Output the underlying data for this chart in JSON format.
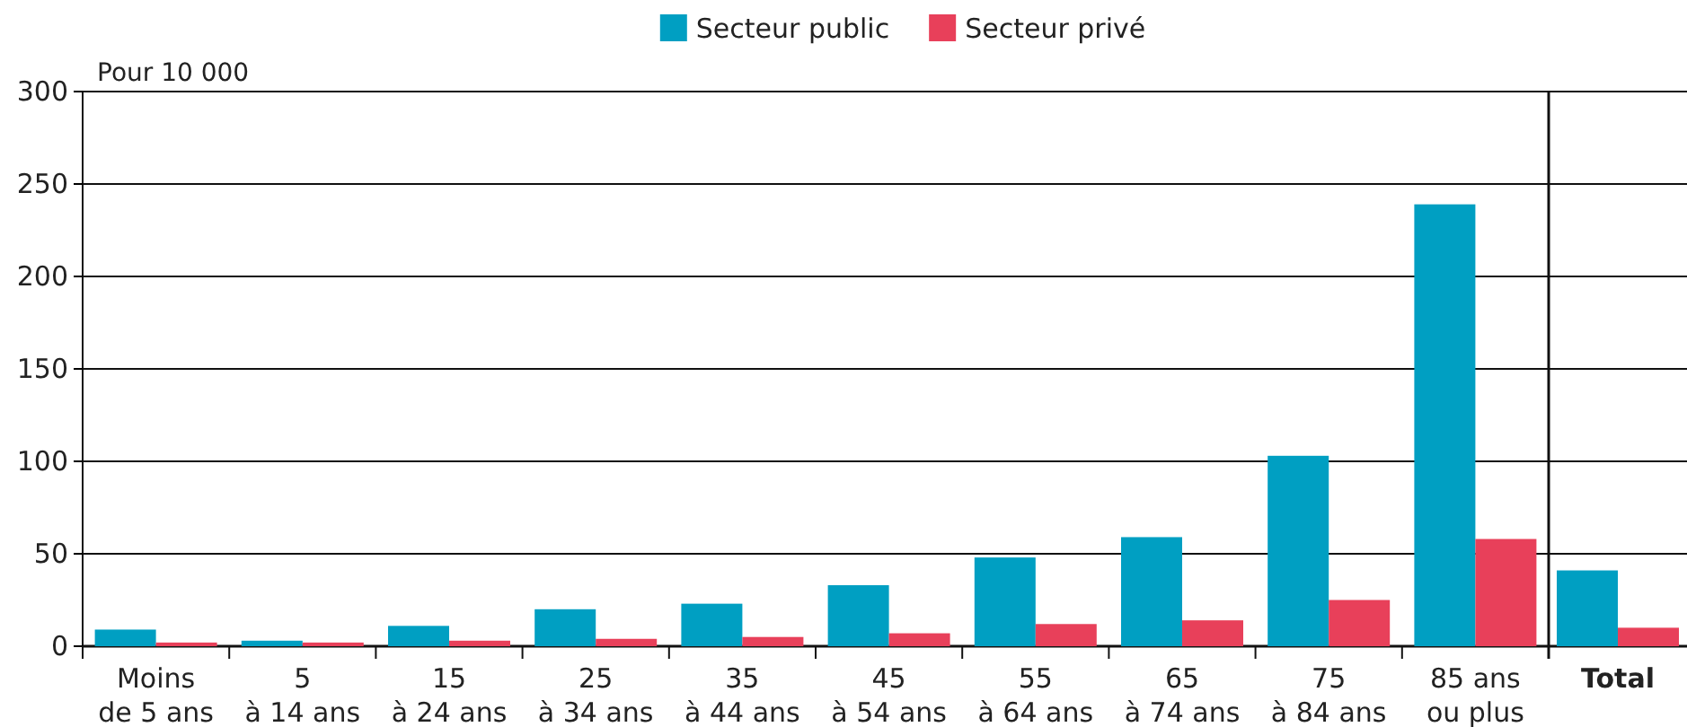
{
  "chart_data": [
    {
      "type": "bar",
      "ylabel": "Pour 10 000",
      "categories": [
        "Moins\nde 5 ans",
        "5\nà 14 ans",
        "15\nà 24 ans",
        "25\nà 34 ans",
        "35\nà 44 ans",
        "45\nà 54 ans",
        "55\nà 64 ans",
        "65\nà 74 ans",
        "75\nà 84 ans",
        "85 ans\nou plus"
      ],
      "series": [
        {
          "name": "Secteur public",
          "color": "#009fc2",
          "values": [
            9,
            3,
            11,
            20,
            23,
            33,
            48,
            59,
            103,
            239
          ]
        },
        {
          "name": "Secteur privé",
          "color": "#e8405a",
          "values": [
            2,
            2,
            3,
            4,
            5,
            7,
            12,
            14,
            25,
            58
          ]
        }
      ],
      "ylim": [
        0,
        300
      ],
      "yticks": [
        0,
        50,
        100,
        150,
        200,
        250,
        300
      ],
      "grid": "y",
      "legend": "top"
    },
    {
      "type": "bar",
      "categories": [
        "Total"
      ],
      "series": [
        {
          "color": "#009fc2",
          "values": [
            41
          ]
        },
        {
          "color": "#e8405a",
          "values": [
            10
          ]
        }
      ],
      "ylim": [
        0,
        300
      ],
      "yticks": [
        0,
        50,
        100,
        150,
        200,
        250,
        300
      ],
      "grid": "y",
      "tick_labels": "x"
    }
  ]
}
